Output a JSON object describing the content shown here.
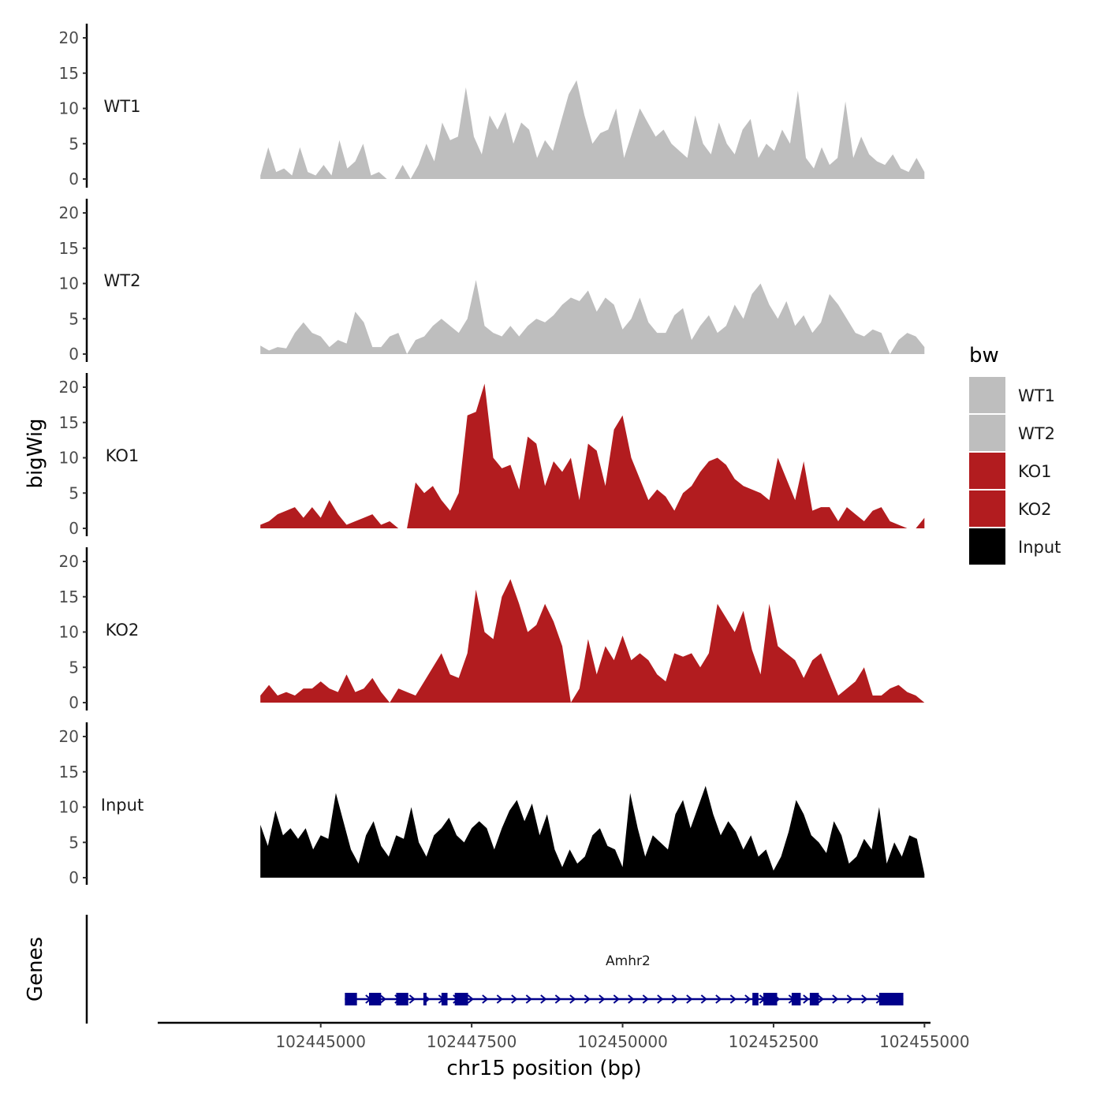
{
  "chart_data": {
    "type": "area",
    "title": "",
    "xlabel": "chr15 position (bp)",
    "ylabel": "bigWig",
    "gene_panel_label": "Genes",
    "xlim": [
      102442300,
      102455100
    ],
    "x_ticks": [
      102445000,
      102447500,
      102450000,
      102452500,
      102455000
    ],
    "x_tick_labels": [
      "102445000",
      "102447500",
      "102450000",
      "102452500",
      "102455000"
    ],
    "ylim": [
      0,
      22
    ],
    "y_ticks": [
      0,
      5,
      10,
      15,
      20
    ],
    "y_tick_labels": [
      "0",
      "5",
      "10",
      "15",
      "20"
    ],
    "data_range": [
      102444000,
      102455000
    ],
    "legend": {
      "title": "bw",
      "position": "right",
      "entries": [
        {
          "label": "WT1",
          "color": "#bebebe"
        },
        {
          "label": "WT2",
          "color": "#bebebe"
        },
        {
          "label": "KO1",
          "color": "#b21c1f"
        },
        {
          "label": "KO2",
          "color": "#b21c1f"
        },
        {
          "label": "Input",
          "color": "#000000"
        }
      ]
    },
    "series": [
      {
        "name": "WT1",
        "color": "#bebebe",
        "values": [
          0.5,
          4.5,
          1,
          1.5,
          0.5,
          4.5,
          1,
          0.5,
          2,
          0.5,
          5.5,
          1.5,
          2.5,
          5,
          0.5,
          1,
          0,
          0,
          2,
          0,
          2,
          5,
          2.5,
          8,
          5.5,
          6,
          13,
          6,
          3.5,
          9,
          7,
          9.5,
          5,
          8,
          7,
          3,
          5.5,
          4,
          8,
          12,
          14,
          9,
          5,
          6.5,
          7,
          10,
          3,
          6.5,
          10,
          8,
          6,
          7,
          5,
          4,
          3,
          9,
          5,
          3.5,
          8,
          5,
          3.5,
          7,
          8.5,
          3,
          5,
          4,
          7,
          5,
          12.5,
          3,
          1.5,
          4.5,
          2,
          3,
          11,
          3,
          6,
          3.5,
          2.5,
          2,
          3.5,
          1.5,
          1,
          3,
          1
        ]
      },
      {
        "name": "WT2",
        "color": "#bebebe",
        "values": [
          1.2,
          0.5,
          1,
          0.8,
          3,
          4.5,
          3,
          2.5,
          1,
          2,
          1.5,
          6,
          4.5,
          1,
          1,
          2.5,
          3,
          0,
          2,
          2.5,
          4,
          5,
          4,
          3,
          5,
          10.5,
          4,
          3,
          2.5,
          4,
          2.5,
          4,
          5,
          4.5,
          5.5,
          7,
          8,
          7.5,
          9,
          6,
          8,
          7,
          3.5,
          5,
          8,
          4.5,
          3,
          3,
          5.5,
          6.5,
          2,
          4,
          5.5,
          3,
          4,
          7,
          5,
          8.5,
          10,
          7,
          5,
          7.5,
          4,
          5.5,
          3,
          4.5,
          8.5,
          7,
          5,
          3,
          2.5,
          3.5,
          3,
          0,
          2,
          3,
          2.5,
          1
        ]
      },
      {
        "name": "KO1",
        "color": "#b21c1f",
        "values": [
          0.5,
          1,
          2,
          2.5,
          3,
          1.5,
          3,
          1.5,
          4,
          2,
          0.5,
          1,
          1.5,
          2,
          0.5,
          1,
          0,
          0,
          6.5,
          5,
          6,
          4,
          2.5,
          5,
          16,
          16.5,
          20.5,
          10,
          8.5,
          9,
          5.5,
          13,
          12,
          6,
          9.5,
          8,
          10,
          4,
          12,
          11,
          6,
          14,
          16,
          10,
          7,
          4,
          5.5,
          4.5,
          2.5,
          5,
          6,
          8,
          9.5,
          10,
          9,
          7,
          6,
          5.5,
          5,
          4,
          10,
          7,
          4,
          9.5,
          2.5,
          3,
          3,
          1,
          3,
          2,
          1,
          2.5,
          3,
          1,
          0.5,
          0,
          0,
          1.5
        ]
      },
      {
        "name": "KO2",
        "color": "#b21c1f",
        "values": [
          1,
          2.5,
          1,
          1.5,
          1,
          2,
          2,
          3,
          2,
          1.5,
          4,
          1.5,
          2,
          3.5,
          1.5,
          0,
          2,
          1.5,
          1,
          3,
          5,
          7,
          4,
          3.5,
          7,
          16,
          10,
          9,
          15,
          17.5,
          14,
          10,
          11,
          14,
          11.5,
          8,
          0,
          2,
          9,
          4,
          8,
          6,
          9.5,
          6,
          7,
          6,
          4,
          3,
          7,
          6.5,
          7,
          5,
          7,
          14,
          12,
          10,
          13,
          7.5,
          4,
          14,
          8,
          7,
          6,
          3.5,
          6,
          7,
          4,
          1,
          2,
          3,
          5,
          1,
          1,
          2,
          2.5,
          1.5,
          1,
          0
        ]
      },
      {
        "name": "Input",
        "color": "#000000",
        "values": [
          7.5,
          4.5,
          9.5,
          6,
          7,
          5.5,
          7,
          4,
          6,
          5.5,
          12,
          8,
          4,
          2,
          6,
          8,
          4.5,
          3,
          6,
          5.5,
          10,
          5,
          3,
          6,
          7,
          8.5,
          6,
          5,
          7,
          8,
          7,
          4,
          7,
          9.5,
          11,
          8,
          10.5,
          6,
          9,
          4,
          1.5,
          4,
          2,
          3,
          6,
          7,
          4.5,
          4,
          1.5,
          12,
          7,
          3,
          6,
          5,
          4,
          9,
          11,
          7,
          10,
          13,
          9,
          6,
          8,
          6.5,
          4,
          6,
          3,
          4,
          1,
          3,
          6.5,
          11,
          9,
          6,
          5,
          3.5,
          8,
          6,
          2,
          3,
          5.5,
          4,
          10,
          2,
          5,
          3,
          6,
          5.5,
          0.5
        ]
      }
    ],
    "gene": {
      "name": "Amhr2",
      "strand": "+",
      "start": 102445400,
      "end": 102454650,
      "exons": [
        [
          102445400,
          102445600
        ],
        [
          102445800,
          102446000
        ],
        [
          102446250,
          102446450
        ],
        [
          102446700,
          102446750
        ],
        [
          102447000,
          102447100
        ],
        [
          102447220,
          102447440
        ],
        [
          102452150,
          102452250
        ],
        [
          102452330,
          102452560
        ],
        [
          102452800,
          102452950
        ],
        [
          102453100,
          102453250
        ],
        [
          102454250,
          102454650
        ]
      ]
    }
  }
}
